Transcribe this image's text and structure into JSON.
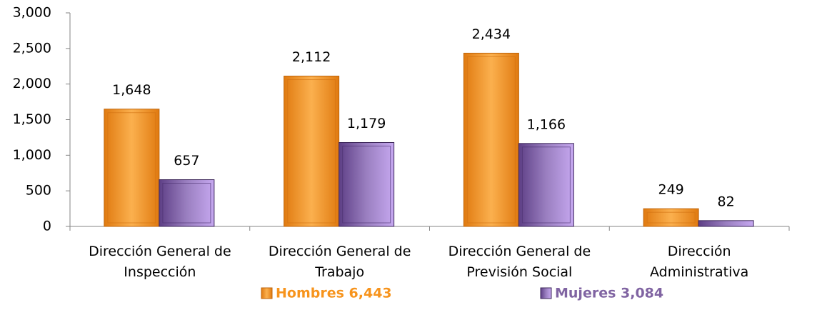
{
  "chart_data": {
    "type": "bar",
    "categories": [
      "Dirección General de\nInspección",
      "Dirección General de\nTrabajo",
      "Dirección General de\nPrevisión Social",
      "Dirección\nAdministrativa"
    ],
    "series": [
      {
        "name": "Hombres 6,443",
        "color": "#f7941d",
        "values": [
          1648,
          2112,
          2434,
          249
        ],
        "value_labels": [
          "1,648",
          "2,112",
          "2,434",
          "249"
        ]
      },
      {
        "name": "Mujeres 3,084",
        "color": "#8064a2",
        "values": [
          657,
          1179,
          1166,
          82
        ],
        "value_labels": [
          "657",
          "1,179",
          "1,166",
          "82"
        ]
      }
    ],
    "ylim": [
      0,
      3000
    ],
    "yticks": [
      0,
      500,
      {
        "value": 1000,
        "label": "1,000"
      },
      {
        "value": 1500,
        "label": "1,500"
      },
      {
        "value": 2000,
        "label": "2,000"
      },
      {
        "value": 2500,
        "label": "2,500"
      },
      {
        "value": 3000,
        "label": "3,000"
      }
    ],
    "grid": false
  }
}
